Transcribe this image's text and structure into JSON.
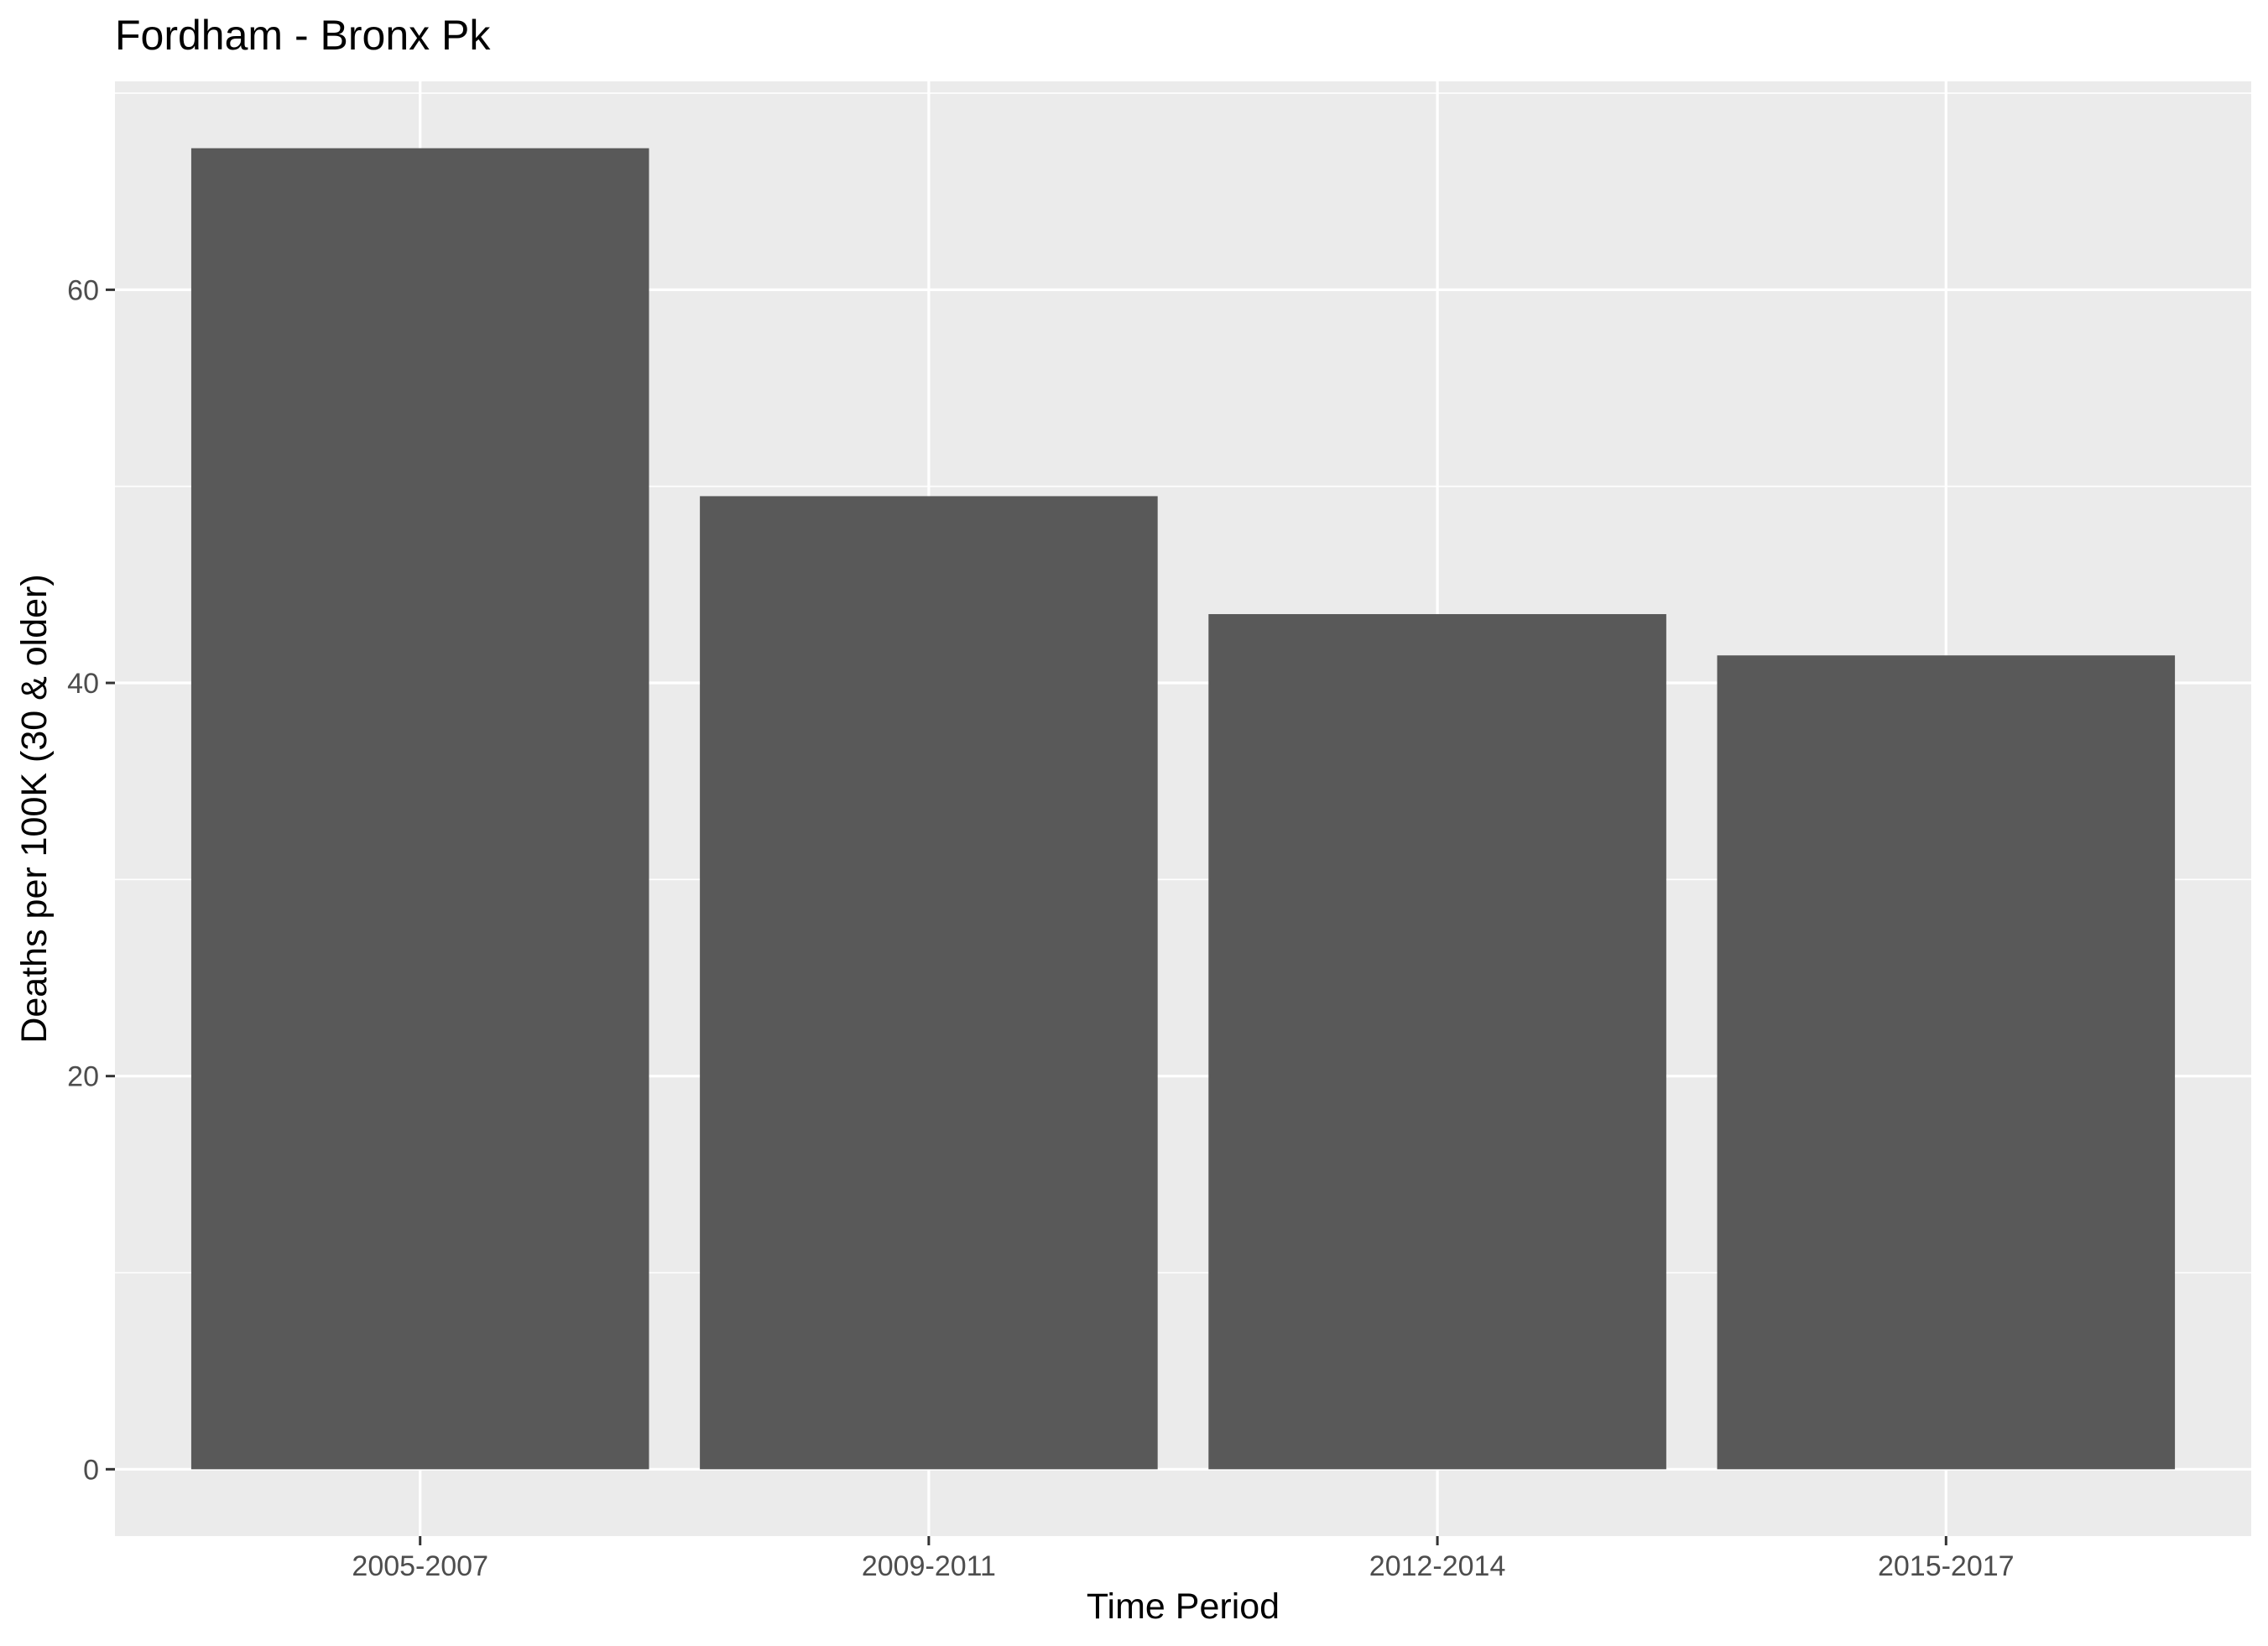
{
  "chart_data": {
    "type": "bar",
    "title": "Fordham - Bronx Pk",
    "xlabel": "Time Period",
    "ylabel": "Deaths per 100K (30 & older)",
    "categories": [
      "2005-2007",
      "2009-2011",
      "2012-2014",
      "2015-2017"
    ],
    "values": [
      67.2,
      49.5,
      43.5,
      41.4
    ],
    "ylim": [
      -3.4,
      70.6
    ],
    "yticks": [
      0,
      20,
      40,
      60
    ],
    "ytick_labels": [
      "0",
      "20",
      "40",
      "60"
    ],
    "grid": true,
    "legend": "none",
    "colors": {
      "bar": "#595959",
      "panel": "#ebebeb",
      "grid": "#ffffff",
      "tick_text": "#4d4d4d",
      "tick_mark": "#333333"
    }
  }
}
